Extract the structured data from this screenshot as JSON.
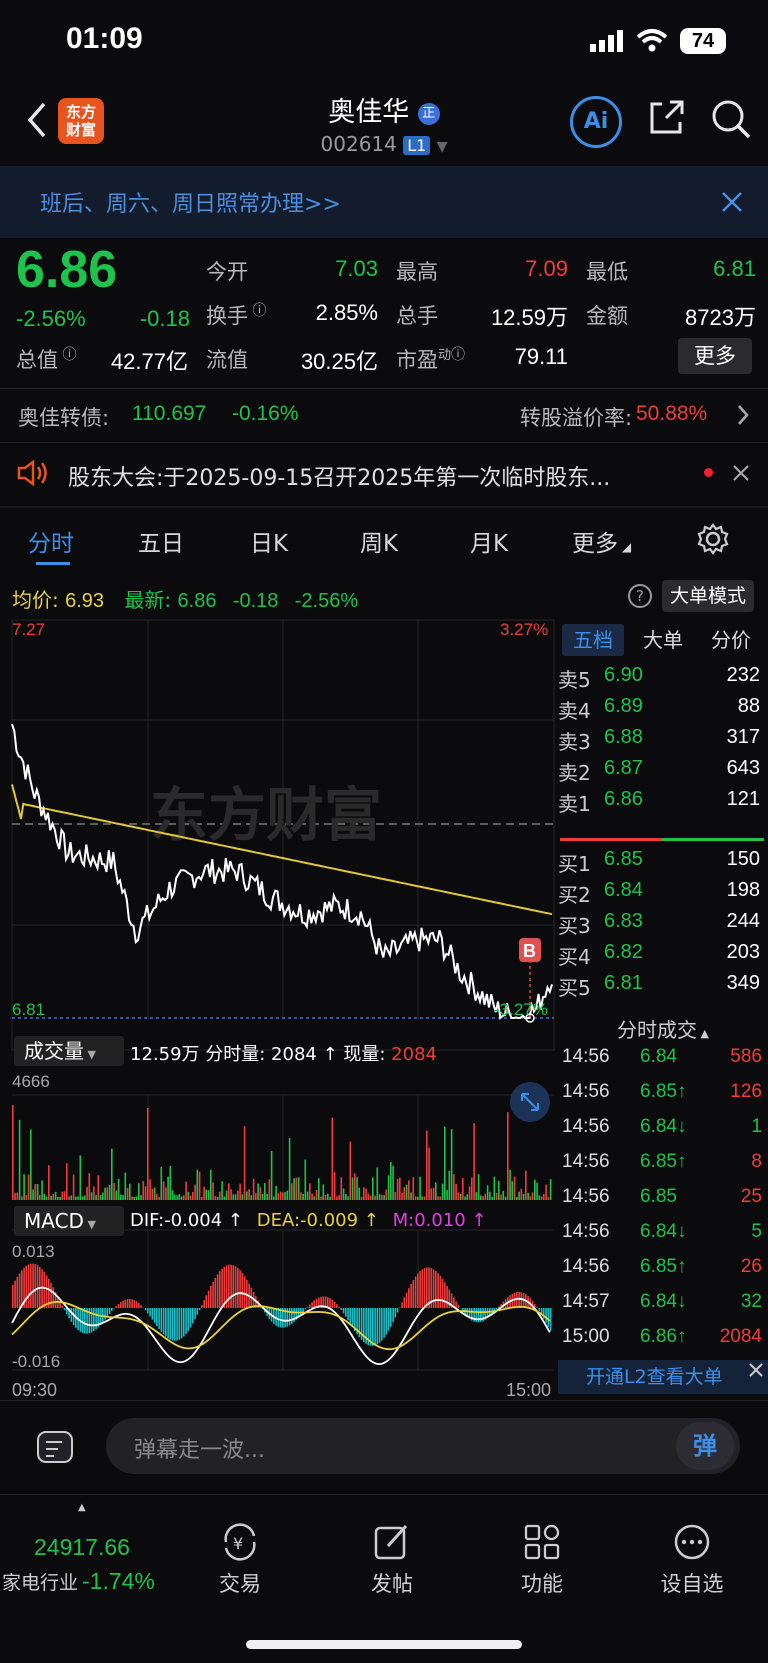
{
  "status_bar": {
    "time": "01:09",
    "battery": "74"
  },
  "header": {
    "logo_text_line1": "东方",
    "logo_text_line2": "财富",
    "stock_name": "奥佳华",
    "stock_badge": "正",
    "stock_code": "002614",
    "level": "L1",
    "ai_label": "Ai"
  },
  "banner": {
    "text": "班后、周六、周日照常办理>>"
  },
  "quote": {
    "price": "6.86",
    "change_pct": "-2.56%",
    "change": "-0.18",
    "open_label": "今开",
    "open": "7.03",
    "high_label": "最高",
    "high": "7.09",
    "low_label": "最低",
    "low": "6.81",
    "turnover_label": "换手",
    "turnover": "2.85%",
    "volume_label": "总手",
    "volume": "12.59万",
    "amount_label": "金额",
    "amount": "8723万",
    "mktcap_label": "总值",
    "mktcap": "42.77亿",
    "float_label": "流值",
    "float_cap": "30.25亿",
    "pe_label": "市盈",
    "pe_sup": "动",
    "pe": "79.11",
    "more_label": "更多"
  },
  "bond": {
    "name": "奥佳转债:",
    "price": "110.697",
    "change": "-0.16%",
    "premium_label": "转股溢价率:",
    "premium": "50.88%"
  },
  "notice": {
    "text": "股东大会:于2025-09-15召开2025年第一次临时股东..."
  },
  "tabs": [
    "分时",
    "五日",
    "日K",
    "周K",
    "月K",
    "更多"
  ],
  "intraday_header": {
    "avg_label": "均价:",
    "avg": "6.93",
    "latest_label": "最新:",
    "latest": "6.86",
    "change": "-0.18",
    "change_pct": "-2.56%",
    "mode_button": "大单模式"
  },
  "chart_labels": {
    "top_price": "7.27",
    "top_pct": "3.27%",
    "bottom_price": "6.81",
    "bottom_pct": "-3.27%",
    "watermark": "东方财富",
    "marker": "B",
    "volume_selector": "成交量",
    "volume_info": "12.59万 分时量: 2084 ↑ 现量:",
    "current_vol": "2084",
    "vol_max": "4666",
    "macd_selector": "MACD",
    "dif": "DIF:-0.004 ↑",
    "dea": "DEA:-0.009 ↑",
    "m": "M:0.010 ↑",
    "macd_top": "0.013",
    "macd_bottom": "-0.016",
    "time_start": "09:30",
    "time_end": "15:00"
  },
  "order_book": {
    "tabs": [
      "五档",
      "大单",
      "分价"
    ],
    "asks": [
      {
        "label": "卖5",
        "price": "6.90",
        "vol": "232"
      },
      {
        "label": "卖4",
        "price": "6.89",
        "vol": "88"
      },
      {
        "label": "卖3",
        "price": "6.88",
        "vol": "317"
      },
      {
        "label": "卖2",
        "price": "6.87",
        "vol": "643"
      },
      {
        "label": "卖1",
        "price": "6.86",
        "vol": "121"
      }
    ],
    "bids": [
      {
        "label": "买1",
        "price": "6.85",
        "vol": "150"
      },
      {
        "label": "买2",
        "price": "6.84",
        "vol": "198"
      },
      {
        "label": "买3",
        "price": "6.83",
        "vol": "244"
      },
      {
        "label": "买4",
        "price": "6.82",
        "vol": "203"
      },
      {
        "label": "买5",
        "price": "6.81",
        "vol": "349"
      }
    ]
  },
  "trades": {
    "title": "分时成交",
    "rows": [
      {
        "time": "14:56",
        "price": "6.84",
        "vol": "586"
      },
      {
        "time": "14:56",
        "price": "6.85↑",
        "vol": "126"
      },
      {
        "time": "14:56",
        "price": "6.84↓",
        "vol": "1"
      },
      {
        "time": "14:56",
        "price": "6.85↑",
        "vol": "8"
      },
      {
        "time": "14:56",
        "price": "6.85",
        "vol": "25"
      },
      {
        "time": "14:56",
        "price": "6.84↓",
        "vol": "5"
      },
      {
        "time": "14:56",
        "price": "6.85↑",
        "vol": "26"
      },
      {
        "time": "14:57",
        "price": "6.84↓",
        "vol": "32"
      },
      {
        "time": "15:00",
        "price": "6.86↑",
        "vol": "2084"
      }
    ],
    "l2_promo": "开通L2查看大单"
  },
  "comment": {
    "placeholder": "弹幕走一波...",
    "send_label": "弹"
  },
  "bottom_nav": {
    "index_value": "24917.66",
    "index_name": "家电行业",
    "index_change": "-1.74%",
    "items": [
      "交易",
      "发帖",
      "功能",
      "设自选"
    ]
  }
}
